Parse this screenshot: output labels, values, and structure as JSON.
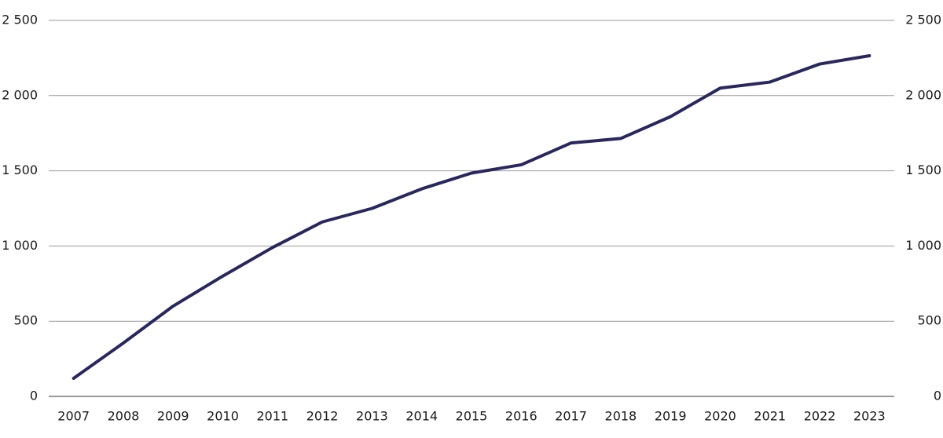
{
  "chart_data": {
    "type": "line",
    "categories": [
      "2007",
      "2008",
      "2009",
      "2010",
      "2011",
      "2012",
      "2013",
      "2014",
      "2015",
      "2016",
      "2017",
      "2018",
      "2019",
      "2020",
      "2021",
      "2022",
      "2023"
    ],
    "series": [
      {
        "color": "#28285e",
        "values": [
          120,
          355,
          600,
          800,
          990,
          1160,
          1250,
          1380,
          1485,
          1540,
          1685,
          1715,
          1860,
          2050,
          2090,
          2210,
          2265
        ]
      }
    ],
    "ylim": [
      0,
      2500
    ],
    "yticks": [
      0,
      500,
      {
        "value": 1000,
        "label": "1 000"
      },
      {
        "value": 1500,
        "label": "1 500"
      },
      {
        "value": 2000,
        "label": "2 000"
      },
      {
        "value": 2500,
        "label": "2 500"
      }
    ],
    "y2lim": [
      0,
      2500
    ],
    "y2ticks": [
      0,
      500,
      {
        "value": 1000,
        "label": "1 000"
      },
      {
        "value": 1500,
        "label": "1 500"
      },
      {
        "value": 2000,
        "label": "2 000"
      },
      {
        "value": 2500,
        "label": "2 500"
      }
    ],
    "grid": true
  }
}
